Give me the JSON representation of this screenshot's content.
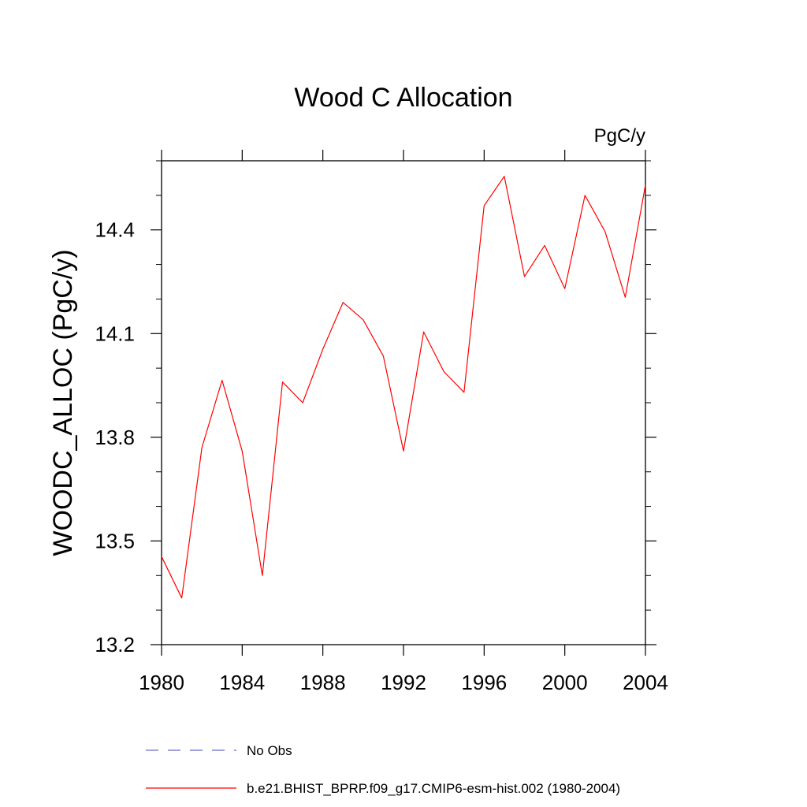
{
  "chart_data": {
    "type": "line",
    "title": "Wood C Allocation",
    "units_label": "PgC/y",
    "xlabel": "",
    "ylabel": "WOODC_ALLOC  (PgC/y)",
    "xlim": [
      1980,
      2004
    ],
    "ylim": [
      13.2,
      14.6
    ],
    "x_ticks": [
      1980,
      1984,
      1988,
      1992,
      1996,
      2000,
      2004
    ],
    "y_ticks": [
      13.2,
      13.5,
      13.8,
      14.1,
      14.4
    ],
    "x_tick_labels": [
      "1980",
      "1984",
      "1988",
      "1992",
      "1996",
      "2000",
      "2004"
    ],
    "y_tick_labels": [
      "13.2",
      "13.5",
      "13.8",
      "14.1",
      "14.4"
    ],
    "series": [
      {
        "name": "b.e21.BHIST_BPRP.f09_g17.CMIP6-esm-hist.002 (1980-2004)",
        "color": "#ff0000",
        "style": "solid",
        "x": [
          1980,
          1981,
          1982,
          1983,
          1984,
          1985,
          1986,
          1987,
          1988,
          1989,
          1990,
          1991,
          1992,
          1993,
          1994,
          1995,
          1996,
          1997,
          1998,
          1999,
          2000,
          2001,
          2002,
          2003,
          2004
        ],
        "values": [
          13.455,
          13.335,
          13.77,
          13.965,
          13.76,
          13.4,
          13.96,
          13.9,
          14.055,
          14.19,
          14.14,
          14.035,
          13.76,
          14.105,
          13.99,
          13.93,
          14.47,
          14.555,
          14.265,
          14.355,
          14.23,
          14.5,
          14.395,
          14.205,
          14.53
        ]
      }
    ],
    "legend": [
      {
        "label": "No Obs",
        "color": "#6b6bc8",
        "style": "dashed"
      },
      {
        "label": "b.e21.BHIST_BPRP.f09_g17.CMIP6-esm-hist.002 (1980-2004)",
        "color": "#ff0000",
        "style": "solid"
      }
    ],
    "legend_position": "bottom"
  }
}
